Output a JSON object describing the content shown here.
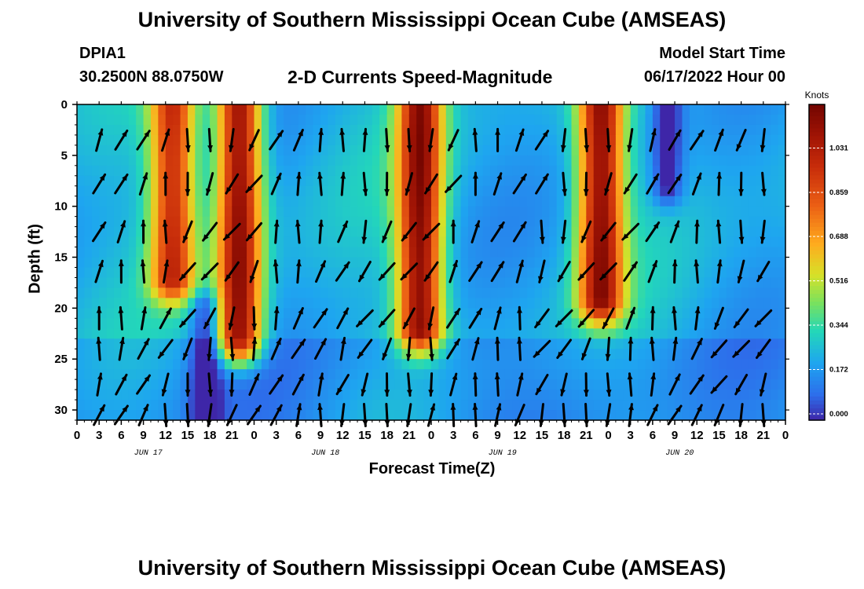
{
  "header": {
    "title": "University of Southern Mississippi Ocean Cube (AMSEAS)",
    "station_id": "DPIA1",
    "station_coords": "30.2500N  88.0750W",
    "plot_title": "2-D Currents Speed-Magnitude",
    "model_start_label": "Model Start Time",
    "model_start_value": "06/17/2022 Hour 00"
  },
  "footer": {
    "title": "University of Southern Mississippi Ocean Cube (AMSEAS)"
  },
  "chart_data": {
    "type": "heatmap",
    "xlabel": "Forecast Time(Z)",
    "ylabel": "Depth (ft)",
    "x_tick_labels": [
      "0",
      "3",
      "6",
      "9",
      "12",
      "15",
      "18",
      "21",
      "0",
      "3",
      "6",
      "9",
      "12",
      "15",
      "18",
      "21",
      "0",
      "3",
      "6",
      "9",
      "12",
      "15",
      "18",
      "21",
      "0",
      "3",
      "6",
      "9",
      "12",
      "15",
      "18",
      "21",
      "0"
    ],
    "x_range_hours": [
      0,
      96
    ],
    "day_labels": [
      {
        "label": "JUN 17",
        "hour": 12
      },
      {
        "label": "JUN 18",
        "hour": 36
      },
      {
        "label": "JUN 19",
        "hour": 60
      },
      {
        "label": "JUN 20",
        "hour": 84
      }
    ],
    "y_tick_labels": [
      "0",
      "5",
      "10",
      "15",
      "20",
      "25",
      "30"
    ],
    "y_ticks": [
      0,
      5,
      10,
      15,
      20,
      25,
      30
    ],
    "y_range_ft": [
      0,
      31
    ],
    "colorbar": {
      "unit": "Knots",
      "ticks": [
        "1.031",
        "0.859",
        "0.688",
        "0.516",
        "0.344",
        "0.172",
        "0.000"
      ],
      "min": 0.0,
      "max": 1.2
    },
    "high_speed_events": [
      {
        "center_hour": 13,
        "depth_max_ft": 17,
        "peak_speed": 0.95
      },
      {
        "center_hour": 22,
        "depth_max_ft": 23,
        "peak_speed": 1.15
      },
      {
        "center_hour": 46.5,
        "depth_max_ft": 22,
        "peak_speed": 1.12
      },
      {
        "center_hour": 71,
        "depth_max_ft": 19,
        "peak_speed": 1.1
      }
    ],
    "low_speed_events": [
      {
        "center_hour": 17.5,
        "depth_min_ft": 20,
        "min_speed": 0.0
      },
      {
        "center_hour": 80,
        "depth_min_ft": 0,
        "depth_max_ft": 8,
        "min_speed": 0.02
      }
    ],
    "vector_rows_ft": [
      3.5,
      7.8,
      12.5,
      16.4,
      21,
      24,
      27.5,
      30.5
    ],
    "vector_times_hours": [
      3,
      6,
      9,
      12,
      15,
      18,
      21,
      24,
      27,
      30,
      33,
      36,
      39,
      42,
      45,
      48,
      51,
      54,
      57,
      60,
      63,
      66,
      69,
      72,
      75,
      78,
      81,
      84,
      87,
      90,
      93
    ]
  }
}
